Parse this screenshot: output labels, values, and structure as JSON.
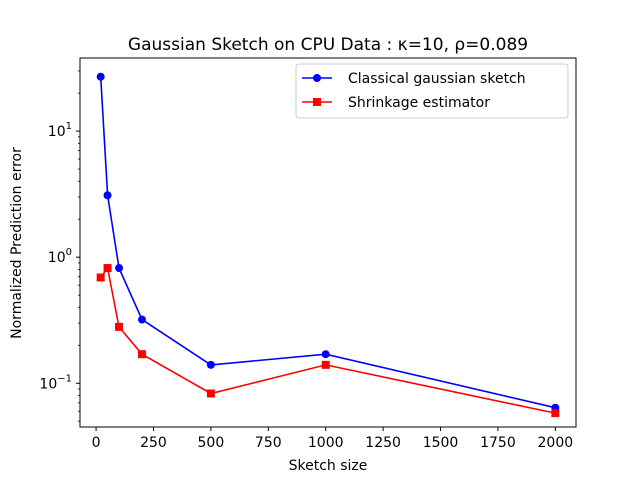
{
  "chart_data": {
    "type": "line",
    "title": "Gaussian Sketch on CPU Data : κ=10, ρ=0.089",
    "xlabel": "Sketch size",
    "ylabel": "Normalized Prediction error",
    "x": [
      20,
      50,
      100,
      200,
      500,
      1000,
      2000
    ],
    "xlim": [
      -70,
      2090
    ],
    "ylim": [
      0.045,
      38
    ],
    "yscale": "log",
    "xticks": [
      0,
      250,
      500,
      750,
      1000,
      1250,
      1500,
      1750,
      2000
    ],
    "xtick_labels": [
      "0",
      "250",
      "500",
      "750",
      "1000",
      "1250",
      "1500",
      "1750",
      "2000"
    ],
    "yticks": [
      0.1,
      1,
      10
    ],
    "ytick_labels": [
      {
        "base": "10",
        "exp": "−1"
      },
      {
        "base": "10",
        "exp": "0"
      },
      {
        "base": "10",
        "exp": "1"
      }
    ],
    "grid": false,
    "legend_position": "upper right",
    "series": [
      {
        "name": "Classical gaussian sketch",
        "color": "#0000ff",
        "marker": "circle",
        "values": [
          27,
          3.1,
          0.82,
          0.32,
          0.14,
          0.17,
          0.064
        ]
      },
      {
        "name": "Shrinkage estimator",
        "color": "#ff0000",
        "marker": "square",
        "values": [
          0.69,
          0.82,
          0.28,
          0.17,
          0.083,
          0.14,
          0.058
        ]
      }
    ]
  }
}
